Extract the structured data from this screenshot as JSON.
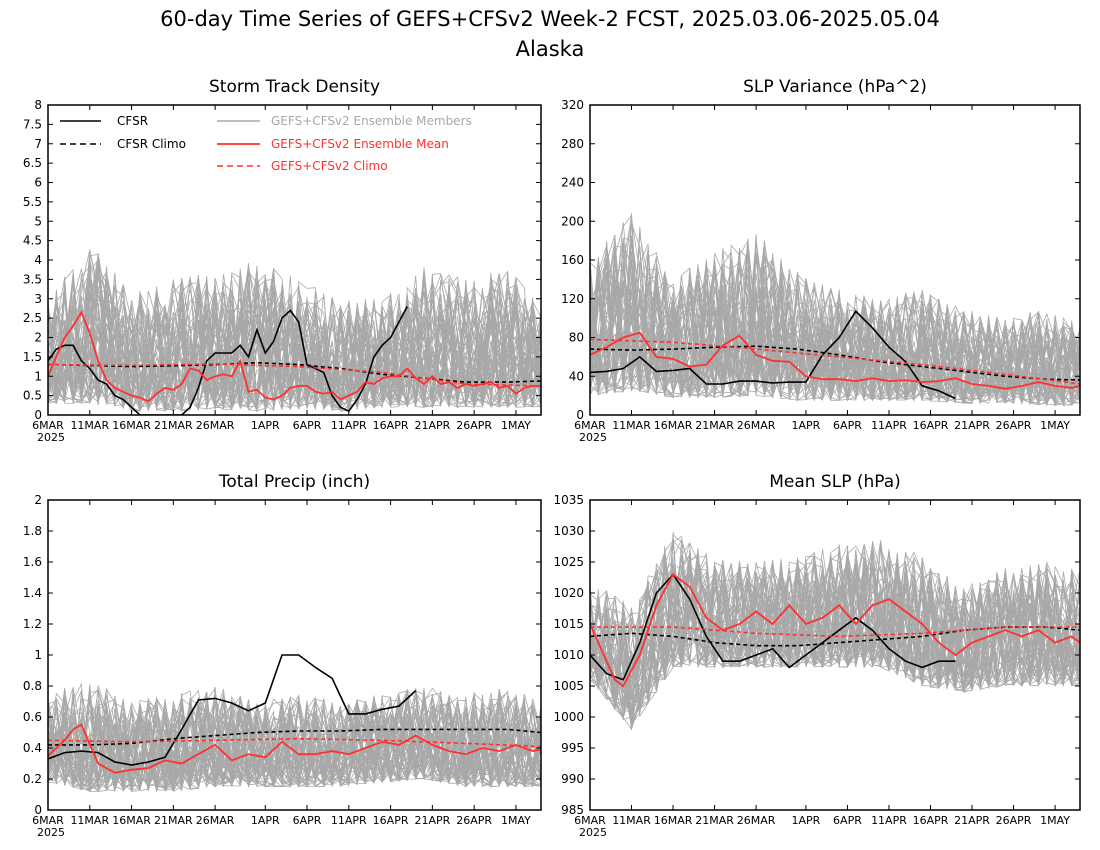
{
  "figure": {
    "title_line1": "60-day Time Series of GEFS+CFSv2 Week-2 FCST, 2025.03.06-2025.05.04",
    "title_line2": "Alaska",
    "x_tick_labels": [
      "6MAR",
      "11MAR",
      "16MAR",
      "21MAR",
      "26MAR",
      "1APR",
      "6APR",
      "11APR",
      "16APR",
      "21APR",
      "26APR",
      "1MAY"
    ],
    "x_year_label": "2025",
    "legend": {
      "cfsr": "CFSR",
      "cfsr_climo": "CFSR Climo",
      "members": "GEFS+CFSv2 Ensemble Members",
      "mean": "GEFS+CFSv2 Ensemble Mean",
      "climo": "GEFS+CFSv2 Climo"
    },
    "colors": {
      "cfsr": "#000000",
      "members": "#a8a8a8",
      "mean": "#ff3030",
      "climo": "#ff3030"
    }
  },
  "chart_data": [
    {
      "type": "line",
      "title": "Storm Track Density",
      "x": "days since 2025-03-06 (0-59)",
      "ylim": [
        0,
        8
      ],
      "yticks": [
        "0",
        "0.5",
        "1",
        "1.5",
        "2",
        "2.5",
        "3",
        "3.5",
        "4",
        "4.5",
        "5",
        "5.5",
        "6",
        "6.5",
        "7",
        "7.5",
        "8"
      ],
      "series": [
        {
          "name": "CFSR",
          "x": [
            0,
            1,
            2,
            3,
            4,
            5,
            6,
            7,
            8,
            9,
            10,
            11,
            12,
            13,
            14,
            15,
            16,
            17,
            18,
            19,
            20,
            21,
            22,
            23,
            24,
            25,
            26,
            27,
            28,
            29,
            30,
            31,
            32,
            33,
            34,
            35,
            36,
            37,
            38,
            39,
            40,
            41,
            42,
            43
          ],
          "values": [
            1.4,
            1.7,
            1.8,
            1.8,
            1.4,
            1.2,
            0.9,
            0.8,
            0.5,
            0.4,
            0.2,
            0,
            0,
            0,
            0,
            0,
            0,
            0.2,
            0.7,
            1.4,
            1.6,
            1.6,
            1.6,
            1.8,
            1.5,
            2.2,
            1.6,
            1.9,
            2.5,
            2.7,
            2.4,
            1.3,
            1.2,
            1.1,
            0.5,
            0.2,
            0.1,
            0.4,
            0.8,
            1.5,
            1.8,
            2.0,
            2.4,
            2.8
          ]
        },
        {
          "name": "CFSR Climo",
          "x": [
            0,
            5,
            10,
            15,
            20,
            25,
            30,
            35,
            40,
            45,
            50,
            55,
            59
          ],
          "values": [
            1.3,
            1.28,
            1.25,
            1.27,
            1.3,
            1.35,
            1.3,
            1.2,
            1.05,
            0.95,
            0.85,
            0.85,
            0.88
          ]
        },
        {
          "name": "GEFS+CFSv2 Ensemble Mean",
          "x": [
            0,
            2,
            3,
            4,
            5,
            6,
            7,
            8,
            9,
            10,
            11,
            12,
            13,
            14,
            15,
            16,
            17,
            18,
            19,
            20,
            21,
            22,
            23,
            24,
            25,
            26,
            27,
            28,
            29,
            30,
            31,
            32,
            33,
            34,
            35,
            36,
            37,
            38,
            39,
            40,
            41,
            42,
            43,
            44,
            45,
            46,
            47,
            48,
            49,
            50,
            51,
            52,
            53,
            54,
            55,
            56,
            57,
            58,
            59
          ],
          "values": [
            1.0,
            2.0,
            2.3,
            2.65,
            2.1,
            1.4,
            0.9,
            0.7,
            0.6,
            0.5,
            0.45,
            0.35,
            0.55,
            0.7,
            0.65,
            0.8,
            1.2,
            1.15,
            0.9,
            1.0,
            1.05,
            1.0,
            1.4,
            0.6,
            0.65,
            0.45,
            0.4,
            0.5,
            0.7,
            0.75,
            0.75,
            0.6,
            0.55,
            0.6,
            0.4,
            0.5,
            0.6,
            0.85,
            0.8,
            0.95,
            1.0,
            1.0,
            1.2,
            0.95,
            0.8,
            1.0,
            0.8,
            0.85,
            0.7,
            0.8,
            0.75,
            0.8,
            0.85,
            0.7,
            0.75,
            0.55,
            0.7,
            0.75,
            0.75
          ]
        },
        {
          "name": "GEFS+CFSv2 Climo",
          "x": [
            0,
            10,
            20,
            30,
            40,
            50,
            59
          ],
          "values": [
            1.3,
            1.28,
            1.32,
            1.25,
            1.1,
            0.8,
            0.75
          ]
        }
      ],
      "members_envelope": {
        "x": [
          0,
          5,
          10,
          15,
          20,
          25,
          30,
          35,
          40,
          45,
          50,
          55,
          59
        ],
        "low": [
          0.3,
          0.3,
          0.1,
          0.1,
          0.15,
          0.1,
          0.15,
          0.1,
          0.2,
          0.2,
          0.2,
          0.2,
          0.2
        ],
        "high": [
          3.0,
          4.5,
          3.2,
          3.5,
          3.7,
          4.0,
          3.5,
          3.0,
          3.0,
          3.8,
          3.5,
          3.8,
          2.8
        ]
      }
    },
    {
      "type": "line",
      "title": "SLP Variance (hPa^2)",
      "ylim": [
        0,
        320
      ],
      "yticks": [
        "0",
        "40",
        "80",
        "120",
        "160",
        "200",
        "240",
        "280",
        "320"
      ],
      "series": [
        {
          "name": "CFSR",
          "x": [
            0,
            2,
            4,
            6,
            8,
            10,
            12,
            14,
            16,
            18,
            20,
            22,
            24,
            26,
            28,
            30,
            32,
            34,
            36,
            38,
            40,
            42,
            44
          ],
          "values": [
            44,
            45,
            48,
            60,
            45,
            46,
            48,
            32,
            32,
            35,
            35,
            33,
            34,
            34,
            62,
            80,
            107,
            90,
            70,
            55,
            30,
            25,
            17
          ]
        },
        {
          "name": "CFSR Climo",
          "x": [
            0,
            5,
            10,
            15,
            20,
            25,
            30,
            35,
            40,
            45,
            50,
            55,
            59
          ],
          "values": [
            68,
            67,
            68,
            70,
            71,
            68,
            62,
            55,
            50,
            45,
            40,
            37,
            36
          ]
        },
        {
          "name": "GEFS+CFSv2 Ensemble Mean",
          "x": [
            0,
            2,
            4,
            6,
            8,
            10,
            12,
            14,
            16,
            18,
            20,
            22,
            24,
            26,
            28,
            30,
            32,
            34,
            36,
            38,
            40,
            42,
            44,
            46,
            48,
            50,
            52,
            54,
            56,
            58,
            59
          ],
          "values": [
            62,
            70,
            80,
            85,
            60,
            58,
            50,
            52,
            72,
            82,
            62,
            56,
            55,
            40,
            37,
            37,
            35,
            38,
            35,
            36,
            34,
            35,
            38,
            32,
            30,
            27,
            30,
            34,
            30,
            28,
            30
          ]
        },
        {
          "name": "GEFS+CFSv2 Climo",
          "x": [
            0,
            10,
            20,
            30,
            40,
            50,
            59
          ],
          "values": [
            78,
            75,
            68,
            60,
            52,
            42,
            32
          ]
        }
      ],
      "members_envelope": {
        "x": [
          0,
          5,
          10,
          15,
          20,
          25,
          30,
          35,
          40,
          45,
          50,
          55,
          59
        ],
        "low": [
          20,
          25,
          18,
          18,
          20,
          15,
          15,
          15,
          15,
          12,
          12,
          10,
          10
        ],
        "high": [
          160,
          210,
          140,
          170,
          190,
          150,
          130,
          120,
          130,
          110,
          100,
          110,
          95
        ]
      }
    },
    {
      "type": "line",
      "title": "Total Precip (inch)",
      "ylim": [
        0,
        2
      ],
      "yticks": [
        "0",
        "0.2",
        "0.4",
        "0.6",
        "0.8",
        "1",
        "1.2",
        "1.4",
        "1.6",
        "1.8",
        "2"
      ],
      "series": [
        {
          "name": "CFSR",
          "x": [
            0,
            2,
            4,
            6,
            8,
            10,
            12,
            14,
            16,
            18,
            20,
            22,
            24,
            26,
            28,
            30,
            32,
            34,
            36,
            38,
            40,
            42,
            44
          ],
          "values": [
            0.33,
            0.37,
            0.38,
            0.37,
            0.31,
            0.29,
            0.31,
            0.34,
            0.52,
            0.71,
            0.72,
            0.69,
            0.64,
            0.69,
            1.0,
            1.0,
            0.92,
            0.85,
            0.62,
            0.62,
            0.65,
            0.67,
            0.77
          ]
        },
        {
          "name": "CFSR Climo",
          "x": [
            0,
            5,
            10,
            15,
            20,
            25,
            30,
            35,
            40,
            45,
            50,
            55,
            59
          ],
          "values": [
            0.42,
            0.42,
            0.43,
            0.46,
            0.48,
            0.5,
            0.51,
            0.51,
            0.52,
            0.52,
            0.52,
            0.52,
            0.5
          ]
        },
        {
          "name": "GEFS+CFSv2 Ensemble Mean",
          "x": [
            0,
            2,
            3,
            4,
            6,
            8,
            10,
            12,
            14,
            16,
            18,
            20,
            22,
            24,
            26,
            28,
            30,
            32,
            34,
            36,
            38,
            40,
            42,
            44,
            46,
            48,
            50,
            52,
            54,
            56,
            58,
            59
          ],
          "values": [
            0.35,
            0.45,
            0.52,
            0.55,
            0.3,
            0.24,
            0.26,
            0.27,
            0.32,
            0.3,
            0.36,
            0.42,
            0.32,
            0.36,
            0.34,
            0.44,
            0.36,
            0.36,
            0.38,
            0.36,
            0.4,
            0.44,
            0.42,
            0.48,
            0.42,
            0.38,
            0.36,
            0.4,
            0.38,
            0.42,
            0.38,
            0.39
          ]
        },
        {
          "name": "GEFS+CFSv2 Climo",
          "x": [
            0,
            10,
            20,
            30,
            40,
            50,
            59
          ],
          "values": [
            0.45,
            0.44,
            0.45,
            0.46,
            0.45,
            0.43,
            0.41
          ]
        }
      ],
      "members_envelope": {
        "x": [
          0,
          5,
          10,
          15,
          20,
          25,
          30,
          35,
          40,
          45,
          50,
          55,
          59
        ],
        "low": [
          0.18,
          0.12,
          0.12,
          0.12,
          0.15,
          0.15,
          0.15,
          0.15,
          0.18,
          0.2,
          0.15,
          0.15,
          0.15
        ],
        "high": [
          0.75,
          0.85,
          0.7,
          0.75,
          0.8,
          0.7,
          0.75,
          0.7,
          0.75,
          0.8,
          0.75,
          0.8,
          0.7
        ]
      }
    },
    {
      "type": "line",
      "title": "Mean SLP (hPa)",
      "ylim": [
        985,
        1035
      ],
      "yticks": [
        "985",
        "990",
        "995",
        "1000",
        "1005",
        "1010",
        "1015",
        "1020",
        "1025",
        "1030",
        "1035"
      ],
      "series": [
        {
          "name": "CFSR",
          "x": [
            0,
            2,
            4,
            6,
            8,
            10,
            12,
            14,
            16,
            18,
            20,
            22,
            24,
            26,
            28,
            30,
            32,
            34,
            36,
            38,
            40,
            42,
            44
          ],
          "values": [
            1010,
            1007,
            1006,
            1012,
            1020,
            1023,
            1019,
            1013,
            1009,
            1009,
            1010,
            1011,
            1008,
            1010,
            1012,
            1014,
            1016,
            1014,
            1011,
            1009,
            1008,
            1009,
            1009
          ]
        },
        {
          "name": "CFSR Climo",
          "x": [
            0,
            5,
            10,
            15,
            20,
            25,
            30,
            35,
            40,
            45,
            50,
            55,
            59
          ],
          "values": [
            1013,
            1013.5,
            1013,
            1012,
            1011.5,
            1011.5,
            1012,
            1012.5,
            1013,
            1014,
            1014.5,
            1014.5,
            1014
          ]
        },
        {
          "name": "GEFS+CFSv2 Ensemble Mean",
          "x": [
            0,
            2,
            3,
            4,
            6,
            8,
            10,
            12,
            14,
            16,
            18,
            20,
            22,
            24,
            26,
            28,
            30,
            32,
            34,
            36,
            38,
            40,
            42,
            44,
            46,
            48,
            50,
            52,
            54,
            56,
            58,
            59
          ],
          "values": [
            1015,
            1009,
            1006,
            1005,
            1010,
            1018,
            1023,
            1021,
            1016,
            1014,
            1015,
            1017,
            1015,
            1018,
            1015,
            1016,
            1018,
            1015,
            1018,
            1019,
            1017,
            1015,
            1012,
            1010,
            1012,
            1013,
            1014,
            1013,
            1014,
            1012,
            1013,
            1012
          ]
        },
        {
          "name": "GEFS+CFSv2 Climo",
          "x": [
            0,
            10,
            20,
            30,
            40,
            50,
            59
          ],
          "values": [
            1014.5,
            1014.5,
            1013.5,
            1013,
            1013.5,
            1014.5,
            1014.5
          ]
        }
      ],
      "members_envelope": {
        "x": [
          0,
          5,
          10,
          15,
          20,
          25,
          30,
          35,
          40,
          45,
          50,
          55,
          59
        ],
        "low": [
          1006,
          998,
          1008,
          1008,
          1008,
          1008,
          1008,
          1008,
          1005,
          1004,
          1005,
          1005,
          1005
        ],
        "high": [
          1022,
          1018,
          1030,
          1026,
          1025,
          1026,
          1028,
          1029,
          1026,
          1022,
          1024,
          1025,
          1024
        ]
      }
    }
  ]
}
